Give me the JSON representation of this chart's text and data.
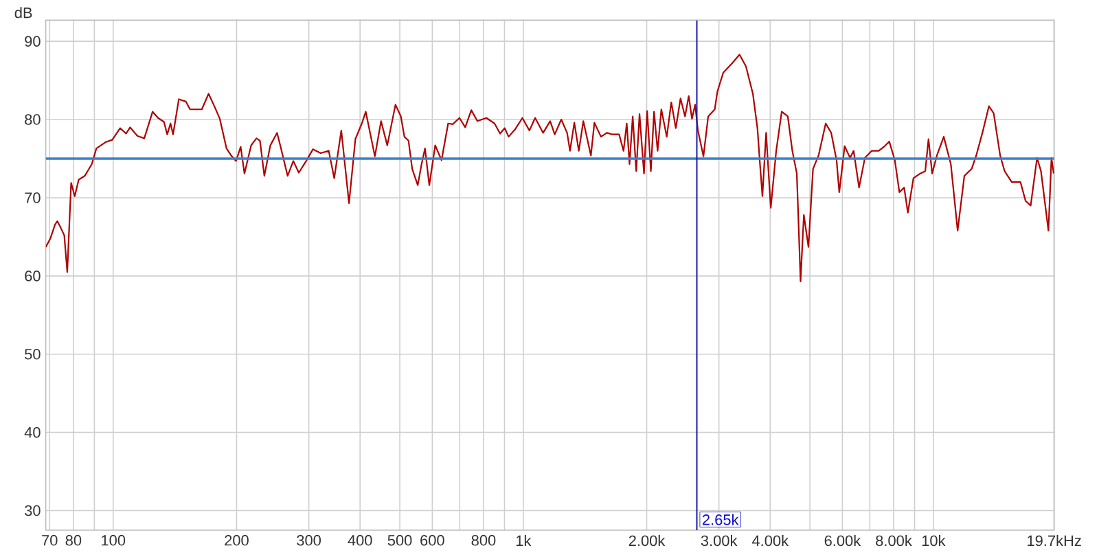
{
  "chart_data": {
    "type": "line",
    "xlabel": "Hz",
    "ylabel": "dB",
    "log": "x",
    "grid": true,
    "marker": "none",
    "xlim": [
      68.5,
      19700
    ],
    "ylim": [
      27.5,
      92.7
    ],
    "xticks": [
      70,
      80,
      {
        "value": 90,
        "label": null
      },
      100,
      200,
      300,
      400,
      500,
      600,
      {
        "value": 700,
        "label": null
      },
      800,
      {
        "value": 900,
        "label": null
      },
      {
        "value": 1000,
        "label": "1k"
      },
      {
        "value": 2000,
        "label": "2.00k"
      },
      {
        "value": 3000,
        "label": "3.00k"
      },
      {
        "value": 4000,
        "label": "4.00k"
      },
      {
        "value": 5000,
        "label": null
      },
      {
        "value": 6000,
        "label": "6.00k"
      },
      {
        "value": 7000,
        "label": null
      },
      {
        "value": 8000,
        "label": "8.00k"
      },
      {
        "value": 9000,
        "label": null
      },
      {
        "value": 10000,
        "label": "10k"
      },
      {
        "value": 19700,
        "label": "19.7k"
      }
    ],
    "yticks": [
      30,
      40,
      50,
      60,
      70,
      80,
      90
    ],
    "x": [
      68.5,
      70.3,
      72.2,
      73.1,
      74.6,
      76.0,
      77.3,
      79.0,
      80.6,
      82.4,
      85.3,
      88.7,
      91.0,
      95.8,
      99.5,
      104,
      107.5,
      110,
      114.6,
      119.1,
      124.8,
      128.7,
      133,
      135.5,
      138,
      140,
      144.6,
      150.4,
      154,
      164.5,
      170.9,
      177.6,
      182,
      189,
      194,
      199.4,
      204.6,
      209,
      217,
      223.6,
      228,
      233.7,
      241.7,
      251,
      255.8,
      266.3,
      275,
      283.6,
      295.6,
      307,
      320.5,
      335.5,
      346,
      360,
      376,
      389.7,
      404,
      413,
      434.7,
      450,
      466,
      488,
      503,
      513,
      525,
      536,
      553,
      565,
      576,
      590,
      610,
      632,
      656,
      673,
      699,
      722,
      747,
      773,
      813,
      851,
      878,
      901,
      921,
      957,
      995,
      1035,
      1069,
      1118,
      1163,
      1193,
      1238,
      1279,
      1300,
      1332,
      1366,
      1401,
      1462,
      1491,
      1547,
      1599,
      1648,
      1713,
      1756,
      1788,
      1816,
      1849,
      1886,
      1921,
      1970,
      2005,
      2047,
      2084,
      2126,
      2171,
      2238,
      2296,
      2355,
      2418,
      2480,
      2532,
      2578,
      2625,
      2666,
      2750,
      2825,
      2930,
      2975,
      3074,
      3218,
      3368,
      3491,
      3630,
      3724,
      3778,
      3830,
      3910,
      4013,
      4138,
      4268,
      4416,
      4530,
      4645,
      4744,
      4832,
      4959,
      5088,
      5248,
      5464,
      5634,
      5807,
      5896,
      6077,
      6264,
      6391,
      6589,
      6808,
      7078,
      7358,
      7609,
      7808,
      8054,
      8263,
      8487,
      8666,
      8942,
      9290,
      9555,
      9730,
      9932,
      10200,
      10600,
      11030,
      11460,
      11900,
      12400,
      12720,
      13170,
      13660,
      14030,
      14550,
      14920,
      15530,
      16310,
      16780,
      17270,
      17900,
      18300,
      19080,
      19410,
      19650
    ],
    "series": [
      {
        "color": "#b00000",
        "values": [
          63.7,
          64.8,
          66.6,
          67.0,
          66.1,
          65.2,
          60.5,
          71.9,
          70.2,
          72.3,
          72.8,
          74.3,
          76.3,
          77.1,
          77.4,
          78.9,
          78.2,
          79.0,
          77.9,
          77.6,
          81.0,
          80.2,
          79.7,
          78.1,
          79.5,
          78.1,
          82.6,
          82.3,
          81.3,
          81.3,
          83.3,
          81.4,
          80.1,
          76.3,
          75.4,
          74.7,
          76.5,
          73.1,
          76.7,
          77.6,
          77.3,
          72.8,
          76.7,
          78.3,
          76.6,
          72.8,
          74.7,
          73.2,
          74.7,
          76.2,
          75.7,
          76.0,
          72.5,
          78.6,
          69.3,
          77.5,
          79.5,
          81.0,
          75.3,
          79.8,
          76.7,
          81.9,
          80.4,
          77.8,
          77.3,
          73.7,
          71.6,
          74.3,
          76.3,
          71.6,
          76.7,
          74.8,
          79.5,
          79.4,
          80.2,
          79.0,
          81.2,
          79.8,
          80.2,
          79.5,
          78.2,
          78.9,
          77.8,
          78.8,
          80.2,
          78.6,
          80.2,
          78.3,
          79.8,
          78.1,
          80.0,
          78.3,
          76.0,
          79.6,
          76.0,
          79.8,
          75.4,
          79.6,
          77.8,
          78.3,
          78.1,
          78.1,
          76.0,
          79.5,
          74.3,
          80.4,
          73.4,
          80.7,
          73.1,
          81.1,
          73.4,
          81.0,
          76.0,
          81.3,
          77.8,
          82.2,
          78.9,
          82.7,
          80.4,
          83.0,
          80.1,
          81.9,
          78.6,
          75.3,
          80.4,
          81.3,
          83.6,
          86.0,
          87.1,
          88.3,
          86.8,
          83.3,
          78.9,
          74.3,
          70.2,
          78.3,
          68.7,
          76.0,
          81.0,
          80.4,
          76.0,
          73.1,
          59.3,
          67.8,
          63.7,
          73.7,
          75.4,
          79.5,
          78.3,
          74.8,
          70.7,
          76.6,
          75.1,
          76.0,
          71.3,
          75.1,
          76.0,
          76.0,
          76.6,
          77.2,
          74.8,
          70.7,
          71.3,
          68.1,
          72.5,
          73.1,
          73.4,
          77.5,
          73.1,
          75.4,
          77.8,
          74.3,
          65.8,
          72.8,
          73.7,
          75.4,
          78.3,
          81.7,
          80.8,
          75.4,
          73.4,
          72.0,
          72.0,
          69.6,
          69.0,
          75.1,
          73.4,
          65.8,
          75.1,
          73.1
        ]
      }
    ],
    "ref_lines": [
      {
        "axis": "y",
        "value": 75,
        "color": "#3d7fca"
      },
      {
        "axis": "x",
        "value": 2650,
        "label": "2.65k",
        "color": "#1c1ca8"
      }
    ]
  }
}
